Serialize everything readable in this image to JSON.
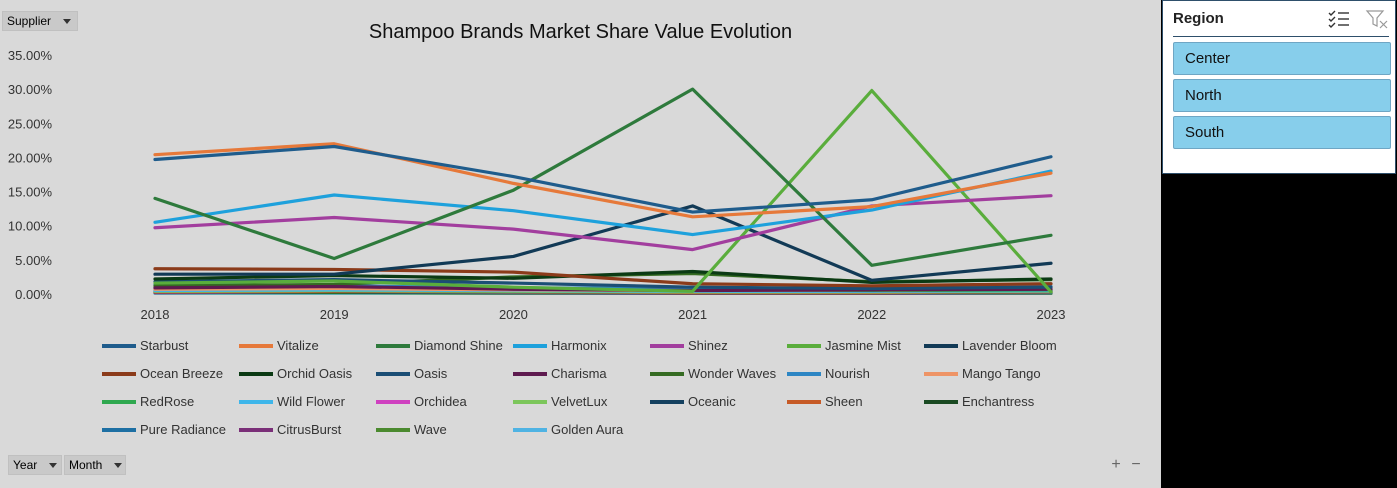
{
  "filters": {
    "supplier_label": "Supplier",
    "year_label": "Year",
    "month_label": "Month"
  },
  "zoom": {
    "plus": "+",
    "minus": "−"
  },
  "slicer": {
    "title": "Region",
    "items": [
      "Center",
      "North",
      "South"
    ],
    "multi_select_icon": "multi-select-icon",
    "clear_filter_icon": "clear-filter-icon",
    "item_color": "#87ceeb"
  },
  "chart_data": {
    "type": "line",
    "title": "Shampoo Brands Market Share Value Evolution",
    "x": [
      "2018",
      "2019",
      "2020",
      "2021",
      "2022",
      "2023"
    ],
    "ylim": [
      0,
      35
    ],
    "yticks": [
      "0.00%",
      "5.00%",
      "10.00%",
      "15.00%",
      "20.00%",
      "25.00%",
      "30.00%",
      "35.00%"
    ],
    "grid": false,
    "legend_position": "bottom",
    "series": [
      {
        "name": "Starbust",
        "color": "#1f5c8c",
        "values": [
          19.7,
          21.6,
          17.2,
          12.0,
          13.8,
          20.1
        ]
      },
      {
        "name": "Vitalize",
        "color": "#e6793a",
        "values": [
          20.4,
          22.0,
          16.2,
          11.3,
          12.8,
          17.7
        ]
      },
      {
        "name": "Diamond Shine",
        "color": "#2e7a3c",
        "values": [
          14.0,
          5.2,
          15.2,
          30.0,
          4.2,
          8.6
        ]
      },
      {
        "name": "Harmonix",
        "color": "#1ea1dc",
        "values": [
          10.5,
          14.5,
          12.2,
          8.7,
          12.3,
          18.0
        ]
      },
      {
        "name": "Shinez",
        "color": "#a23e9e",
        "values": [
          9.7,
          11.2,
          9.5,
          6.5,
          12.9,
          14.4
        ]
      },
      {
        "name": "Jasmine Mist",
        "color": "#5aad3c",
        "values": [
          1.6,
          1.9,
          1.0,
          0.4,
          29.8,
          0.3
        ]
      },
      {
        "name": "Lavender Bloom",
        "color": "#123a56",
        "values": [
          2.9,
          2.9,
          5.5,
          12.9,
          2.0,
          4.5
        ]
      },
      {
        "name": "Ocean Breeze",
        "color": "#8b3b1a",
        "values": [
          3.7,
          3.6,
          3.2,
          1.5,
          1.2,
          1.5
        ]
      },
      {
        "name": "Orchid Oasis",
        "color": "#0b3a14",
        "values": [
          2.2,
          2.7,
          2.3,
          3.3,
          1.7,
          2.2
        ]
      },
      {
        "name": "Oasis",
        "color": "#1b4e75",
        "values": [
          1.8,
          2.1,
          1.6,
          1.0,
          0.8,
          1.0
        ]
      },
      {
        "name": "Charisma",
        "color": "#5e1a4f",
        "values": [
          0.9,
          1.1,
          0.7,
          0.5,
          0.6,
          0.7
        ]
      },
      {
        "name": "Wonder Waves",
        "color": "#356b22",
        "values": [
          1.2,
          1.4,
          2.5,
          3.0,
          1.8,
          2.1
        ]
      },
      {
        "name": "Nourish",
        "color": "#2d86c4",
        "values": [
          1.4,
          1.2,
          0.9,
          0.8,
          0.9,
          1.1
        ]
      },
      {
        "name": "Mango Tango",
        "color": "#ee9466",
        "values": [
          0.7,
          0.8,
          0.6,
          0.5,
          0.6,
          0.8
        ]
      },
      {
        "name": "RedRose",
        "color": "#2fa84f",
        "values": [
          1.0,
          0.9,
          0.7,
          0.6,
          0.5,
          0.6
        ]
      },
      {
        "name": "Wild Flower",
        "color": "#3eb6ea",
        "values": [
          0.5,
          0.6,
          0.5,
          0.4,
          0.4,
          0.5
        ]
      },
      {
        "name": "Orchidea",
        "color": "#cf41c0",
        "values": [
          0.8,
          0.7,
          0.6,
          0.5,
          0.4,
          0.5
        ]
      },
      {
        "name": "VelvetLux",
        "color": "#7cc65b",
        "values": [
          0.4,
          0.5,
          0.4,
          0.3,
          0.3,
          0.4
        ]
      },
      {
        "name": "Oceanic",
        "color": "#14405f",
        "values": [
          0.6,
          0.5,
          0.4,
          0.3,
          0.3,
          0.4
        ]
      },
      {
        "name": "Sheen",
        "color": "#c65a26",
        "values": [
          0.3,
          0.4,
          0.3,
          0.2,
          0.2,
          0.3
        ]
      },
      {
        "name": "Enchantress",
        "color": "#1a4a22",
        "values": [
          0.4,
          0.3,
          0.3,
          0.2,
          0.2,
          0.3
        ]
      },
      {
        "name": "Pure Radiance",
        "color": "#1d6fa3",
        "values": [
          0.3,
          0.3,
          0.2,
          0.2,
          0.2,
          0.2
        ]
      },
      {
        "name": "CitrusBurst",
        "color": "#7a2f78",
        "values": [
          0.2,
          0.3,
          0.2,
          0.1,
          0.1,
          0.2
        ]
      },
      {
        "name": "Wave",
        "color": "#4b8a2f",
        "values": [
          0.2,
          0.2,
          0.1,
          0.1,
          0.1,
          0.1
        ]
      },
      {
        "name": "Golden Aura",
        "color": "#4fb3e3",
        "values": [
          0.1,
          0.1,
          0.1,
          0.1,
          0.1,
          0.1
        ]
      }
    ]
  }
}
